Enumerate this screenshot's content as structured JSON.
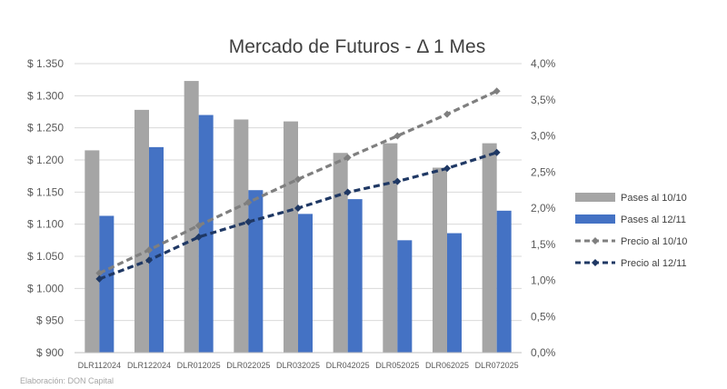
{
  "chart_data": {
    "type": "bar",
    "title": "Mercado de Futuros  - Δ 1 Mes",
    "categories": [
      "DLR112024",
      "DLR122024",
      "DLR012025",
      "DLR022025",
      "DLR032025",
      "DLR042025",
      "DLR052025",
      "DLR062025",
      "DLR072025"
    ],
    "y_left": {
      "ticks": [
        "$ 900",
        "$ 950",
        "$ 1.000",
        "$ 1.050",
        "$ 1.100",
        "$ 1.150",
        "$ 1.200",
        "$ 1.250",
        "$ 1.300",
        "$ 1.350"
      ],
      "ylim": [
        900,
        1350
      ]
    },
    "y_right": {
      "ticks": [
        "0,0%",
        "0,5%",
        "1,0%",
        "1,5%",
        "2,0%",
        "2,5%",
        "3,0%",
        "3,5%",
        "4,0%"
      ],
      "ylim": [
        0,
        4.0
      ]
    },
    "series": [
      {
        "name": "Pases al 10/10",
        "type": "bar",
        "axis": "left",
        "color": "#a5a5a5",
        "values": [
          1215,
          1278,
          1323,
          1263,
          1260,
          1211,
          1226,
          1188,
          1226
        ]
      },
      {
        "name": "Pases al 12/11",
        "type": "bar",
        "axis": "left",
        "color": "#4472c4",
        "values": [
          1113,
          1220,
          1270,
          1153,
          1116,
          1139,
          1075,
          1086,
          1121
        ]
      },
      {
        "name": "Precio al 10/10",
        "type": "line",
        "axis": "right",
        "color": "#7f7f7f",
        "dash": true,
        "values": [
          1.1,
          1.42,
          1.76,
          2.08,
          2.4,
          2.7,
          3.0,
          3.3,
          3.62
        ]
      },
      {
        "name": "Precio al 12/11",
        "type": "line",
        "axis": "right",
        "color": "#1f3864",
        "dash": true,
        "values": [
          1.02,
          1.28,
          1.6,
          1.81,
          2.0,
          2.22,
          2.37,
          2.55,
          2.77
        ]
      }
    ],
    "grid": true,
    "legend_position": "right"
  },
  "footer": {
    "text": "Elaboración: DON Capital"
  }
}
